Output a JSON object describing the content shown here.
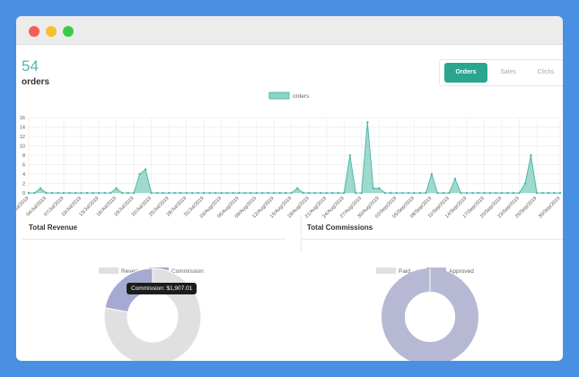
{
  "kpi": {
    "value": "54",
    "label": "orders"
  },
  "segmented": {
    "orders": "Orders",
    "sales": "Sales",
    "clicks": "Clicks"
  },
  "panels": {
    "revenue_title": "Total Revenue",
    "commissions_title": "Total Commissions"
  },
  "tooltip": {
    "text": "Commission: $1,907.01"
  },
  "colors": {
    "accent": "#2aa58f",
    "line": "#4cb9ad",
    "fill": "#8fd4c4",
    "revenue": "#e0e0e0",
    "commission": "#a6a9d2",
    "approved": "#b7b9d4",
    "paid": "#e0e0e0"
  },
  "chart_data": [
    {
      "type": "area",
      "series": [
        {
          "name": "orders",
          "x": [
            "01/Jul/2019",
            "02/Jul/2019",
            "03/Jul/2019",
            "04/Jul/2019",
            "05/Jul/2019",
            "06/Jul/2019",
            "07/Jul/2019",
            "08/Jul/2019",
            "09/Jul/2019",
            "10/Jul/2019",
            "11/Jul/2019",
            "12/Jul/2019",
            "13/Jul/2019",
            "14/Jul/2019",
            "15/Jul/2019",
            "16/Jul/2019",
            "17/Jul/2019",
            "18/Jul/2019",
            "19/Jul/2019",
            "20/Jul/2019",
            "21/Jul/2019",
            "22/Jul/2019",
            "23/Jul/2019",
            "24/Jul/2019",
            "25/Jul/2019",
            "26/Jul/2019",
            "27/Jul/2019",
            "28/Jul/2019",
            "29/Jul/2019",
            "30/Jul/2019",
            "31/Jul/2019",
            "01/Aug/2019",
            "02/Aug/2019",
            "03/Aug/2019",
            "04/Aug/2019",
            "05/Aug/2019",
            "06/Aug/2019",
            "07/Aug/2019",
            "08/Aug/2019",
            "09/Aug/2019",
            "10/Aug/2019",
            "11/Aug/2019",
            "12/Aug/2019",
            "13/Aug/2019",
            "14/Aug/2019",
            "15/Aug/2019",
            "16/Aug/2019",
            "17/Aug/2019",
            "18/Aug/2019",
            "19/Aug/2019",
            "20/Aug/2019",
            "21/Aug/2019",
            "22/Aug/2019",
            "23/Aug/2019",
            "24/Aug/2019",
            "25/Aug/2019",
            "26/Aug/2019",
            "27/Aug/2019",
            "28/Aug/2019",
            "29/Aug/2019",
            "30/Aug/2019",
            "31/Aug/2019",
            "01/Sep/2019",
            "02/Sep/2019",
            "03/Sep/2019",
            "04/Sep/2019",
            "05/Sep/2019",
            "06/Sep/2019",
            "07/Sep/2019",
            "08/Sep/2019",
            "09/Sep/2019",
            "10/Sep/2019",
            "11/Sep/2019",
            "12/Sep/2019",
            "13/Sep/2019",
            "14/Sep/2019",
            "15/Sep/2019",
            "16/Sep/2019",
            "17/Sep/2019",
            "18/Sep/2019",
            "19/Sep/2019",
            "20/Sep/2019",
            "21/Sep/2019",
            "22/Sep/2019",
            "23/Sep/2019",
            "24/Sep/2019",
            "25/Sep/2019",
            "26/Sep/2019",
            "27/Sep/2019",
            "28/Sep/2019",
            "29/Sep/2019",
            "30/Sep/2019"
          ],
          "values": [
            0,
            0,
            1,
            0,
            0,
            0,
            0,
            0,
            0,
            0,
            0,
            0,
            0,
            0,
            0,
            1,
            0,
            0,
            0,
            4,
            5,
            0,
            0,
            0,
            0,
            0,
            0,
            0,
            0,
            0,
            0,
            0,
            0,
            0,
            0,
            0,
            0,
            0,
            0,
            0,
            0,
            0,
            0,
            0,
            0,
            0,
            1,
            0,
            0,
            0,
            0,
            0,
            0,
            0,
            0,
            8,
            0,
            0,
            15,
            1,
            1,
            0,
            0,
            0,
            0,
            0,
            0,
            0,
            0,
            4,
            0,
            0,
            0,
            3,
            0,
            0,
            0,
            0,
            0,
            0,
            0,
            0,
            0,
            0,
            0,
            2,
            8,
            0,
            0,
            0,
            0,
            0
          ]
        }
      ],
      "x_tick_labels": [
        "01/Jul/2019",
        "04/Jul/2019",
        "07/Jul/2019",
        "10/Jul/2019",
        "13/Jul/2019",
        "16/Jul/2019",
        "19/Jul/2019",
        "22/Jul/2019",
        "25/Jul/2019",
        "28/Jul/2019",
        "31/Jul/2019",
        "03/Aug/2019",
        "06/Aug/2019",
        "09/Aug/2019",
        "12/Aug/2019",
        "15/Aug/2019",
        "18/Aug/2019",
        "21/Aug/2019",
        "24/Aug/2019",
        "27/Aug/2019",
        "30/Aug/2019",
        "02/Sep/2019",
        "05/Sep/2019",
        "08/Sep/2019",
        "11/Sep/2019",
        "14/Sep/2019",
        "17/Sep/2019",
        "20/Sep/2019",
        "23/Sep/2019",
        "26/Sep/2019",
        "30/Sep/2019"
      ],
      "y_ticks": [
        0,
        2,
        4,
        6,
        8,
        10,
        12,
        14,
        16
      ],
      "ylim": [
        0,
        16
      ],
      "legend": "top-center",
      "grid": true
    },
    {
      "type": "pie",
      "style": "donut",
      "legend_labels": [
        "Revenue",
        "Commission"
      ],
      "slice_fractions": [
        0.78,
        0.22
      ],
      "legend": "top-center"
    },
    {
      "type": "pie",
      "style": "donut",
      "legend_labels": [
        "Paid",
        "Approved"
      ],
      "slice_fractions": [
        0.0,
        1.0
      ],
      "legend": "top-center"
    }
  ]
}
